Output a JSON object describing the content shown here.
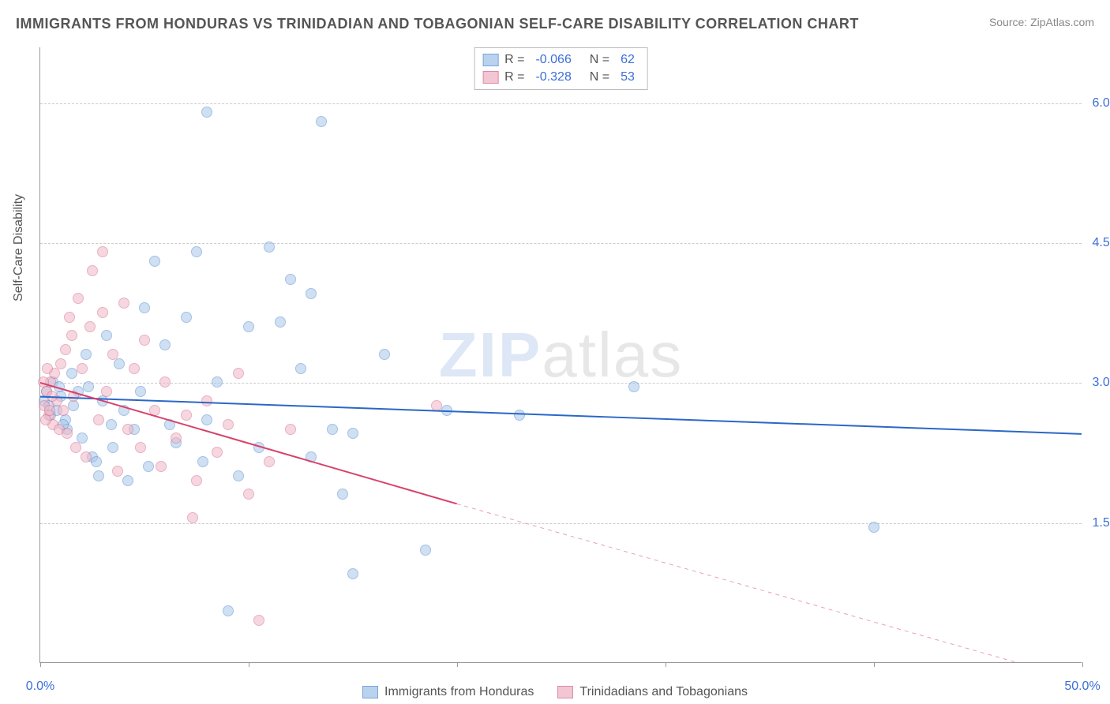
{
  "title": "IMMIGRANTS FROM HONDURAS VS TRINIDADIAN AND TOBAGONIAN SELF-CARE DISABILITY CORRELATION CHART",
  "source": "Source: ZipAtlas.com",
  "y_axis_label": "Self-Care Disability",
  "watermark": {
    "bold": "ZIP",
    "rest": "atlas"
  },
  "chart": {
    "type": "scatter",
    "xlim": [
      0,
      50
    ],
    "ylim": [
      0,
      6.6
    ],
    "x_ticks": [
      0,
      10,
      20,
      30,
      40,
      50
    ],
    "x_tick_labels": [
      "0.0%",
      "",
      "",
      "",
      "",
      "50.0%"
    ],
    "y_ticks": [
      1.5,
      3.0,
      4.5,
      6.0
    ],
    "y_tick_labels": [
      "1.5%",
      "3.0%",
      "4.5%",
      "6.0%"
    ],
    "background_color": "#ffffff",
    "grid_color": "#cccccc",
    "marker_size": 14,
    "series": [
      {
        "name": "Immigrants from Honduras",
        "fill_color": "#a8c8ea",
        "stroke_color": "#5a8ed0",
        "fill_opacity": 0.55,
        "R": "-0.066",
        "N": "62",
        "trend": {
          "x1": 0,
          "y1": 2.85,
          "x2": 50,
          "y2": 2.45,
          "color": "#2b67c7",
          "width": 2,
          "dash": null
        },
        "points": [
          [
            0.2,
            2.8
          ],
          [
            0.4,
            2.75
          ],
          [
            0.3,
            2.9
          ],
          [
            0.5,
            2.65
          ],
          [
            0.6,
            3.0
          ],
          [
            0.8,
            2.7
          ],
          [
            1.0,
            2.85
          ],
          [
            1.2,
            2.6
          ],
          [
            1.5,
            3.1
          ],
          [
            1.3,
            2.5
          ],
          [
            1.8,
            2.9
          ],
          [
            2.0,
            2.4
          ],
          [
            2.5,
            2.2
          ],
          [
            2.2,
            3.3
          ],
          [
            3.0,
            2.8
          ],
          [
            2.8,
            2.0
          ],
          [
            3.2,
            3.5
          ],
          [
            3.5,
            2.3
          ],
          [
            3.8,
            3.2
          ],
          [
            4.0,
            2.7
          ],
          [
            4.2,
            1.95
          ],
          [
            4.5,
            2.5
          ],
          [
            5.0,
            3.8
          ],
          [
            5.5,
            4.3
          ],
          [
            5.2,
            2.1
          ],
          [
            6.0,
            3.4
          ],
          [
            6.5,
            2.35
          ],
          [
            7.0,
            3.7
          ],
          [
            7.5,
            4.4
          ],
          [
            8.0,
            2.6
          ],
          [
            8.0,
            5.9
          ],
          [
            8.5,
            3.0
          ],
          [
            9.0,
            0.55
          ],
          [
            9.5,
            2.0
          ],
          [
            10.0,
            3.6
          ],
          [
            10.5,
            2.3
          ],
          [
            11.0,
            4.45
          ],
          [
            11.5,
            3.65
          ],
          [
            12.0,
            4.1
          ],
          [
            12.5,
            3.15
          ],
          [
            13.0,
            3.95
          ],
          [
            13.5,
            5.8
          ],
          [
            13.0,
            2.2
          ],
          [
            14.0,
            2.5
          ],
          [
            14.5,
            1.8
          ],
          [
            15.0,
            0.95
          ],
          [
            15.0,
            2.45
          ],
          [
            16.5,
            3.3
          ],
          [
            18.5,
            1.2
          ],
          [
            19.5,
            2.7
          ],
          [
            23.0,
            2.65
          ],
          [
            28.5,
            2.95
          ],
          [
            40.0,
            1.45
          ],
          [
            0.9,
            2.95
          ],
          [
            1.1,
            2.55
          ],
          [
            1.6,
            2.75
          ],
          [
            2.3,
            2.95
          ],
          [
            2.7,
            2.15
          ],
          [
            3.4,
            2.55
          ],
          [
            4.8,
            2.9
          ],
          [
            6.2,
            2.55
          ],
          [
            7.8,
            2.15
          ]
        ]
      },
      {
        "name": "Trinidadians and Tobagonians",
        "fill_color": "#f0b8c7",
        "stroke_color": "#d86f8e",
        "fill_opacity": 0.55,
        "R": "-0.328",
        "N": "53",
        "trend": {
          "x1": 0,
          "y1": 3.0,
          "x2": 20,
          "y2": 1.7,
          "color": "#d8416b",
          "width": 2,
          "dash": null
        },
        "trend_ext": {
          "x1": 20,
          "y1": 1.7,
          "x2": 50,
          "y2": -0.2,
          "color": "#e8a0b5",
          "width": 1,
          "dash": "5,5"
        },
        "points": [
          [
            0.2,
            2.75
          ],
          [
            0.3,
            2.9
          ],
          [
            0.4,
            2.65
          ],
          [
            0.5,
            3.0
          ],
          [
            0.6,
            2.55
          ],
          [
            0.7,
            3.1
          ],
          [
            0.8,
            2.8
          ],
          [
            0.9,
            2.5
          ],
          [
            1.0,
            3.2
          ],
          [
            1.1,
            2.7
          ],
          [
            1.2,
            3.35
          ],
          [
            1.3,
            2.45
          ],
          [
            1.5,
            3.5
          ],
          [
            1.6,
            2.85
          ],
          [
            1.8,
            3.9
          ],
          [
            2.0,
            3.15
          ],
          [
            2.2,
            2.2
          ],
          [
            2.4,
            3.6
          ],
          [
            2.5,
            4.2
          ],
          [
            2.8,
            2.6
          ],
          [
            3.0,
            3.75
          ],
          [
            3.0,
            4.4
          ],
          [
            3.2,
            2.9
          ],
          [
            3.5,
            3.3
          ],
          [
            3.7,
            2.05
          ],
          [
            4.0,
            3.85
          ],
          [
            4.2,
            2.5
          ],
          [
            4.5,
            3.15
          ],
          [
            4.8,
            2.3
          ],
          [
            5.0,
            3.45
          ],
          [
            5.5,
            2.7
          ],
          [
            5.8,
            2.1
          ],
          [
            6.0,
            3.0
          ],
          [
            6.5,
            2.4
          ],
          [
            7.0,
            2.65
          ],
          [
            7.3,
            1.55
          ],
          [
            7.5,
            1.95
          ],
          [
            8.0,
            2.8
          ],
          [
            8.5,
            2.25
          ],
          [
            9.0,
            2.55
          ],
          [
            9.5,
            3.1
          ],
          [
            10.0,
            1.8
          ],
          [
            10.5,
            0.45
          ],
          [
            11.0,
            2.15
          ],
          [
            12.0,
            2.5
          ],
          [
            19.0,
            2.75
          ],
          [
            0.15,
            3.0
          ],
          [
            0.25,
            2.6
          ],
          [
            0.35,
            3.15
          ],
          [
            0.45,
            2.7
          ],
          [
            0.55,
            2.85
          ],
          [
            1.4,
            3.7
          ],
          [
            1.7,
            2.3
          ]
        ]
      }
    ]
  },
  "colors": {
    "title": "#555555",
    "source": "#888888",
    "axis_text": "#3b6fd8"
  }
}
